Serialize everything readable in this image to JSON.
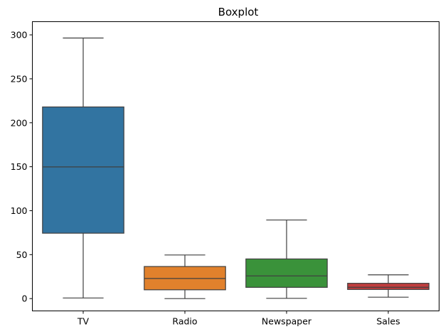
{
  "chart_data": {
    "type": "box",
    "title": "Boxplot",
    "xlabel": "",
    "ylabel": "",
    "categories": [
      "TV",
      "Radio",
      "Newspaper",
      "Sales"
    ],
    "ylim": [
      -14,
      315
    ],
    "yticks": [
      0,
      50,
      100,
      150,
      200,
      250,
      300
    ],
    "boxes": [
      {
        "label": "TV",
        "min": 0.7,
        "q1": 74.4,
        "median": 149.8,
        "q3": 218.0,
        "max": 296.4,
        "color": "#3274a1"
      },
      {
        "label": "Radio",
        "min": 0.0,
        "q1": 10.0,
        "median": 22.9,
        "q3": 36.5,
        "max": 49.6,
        "color": "#e1812c"
      },
      {
        "label": "Newspaper",
        "min": 0.3,
        "q1": 12.8,
        "median": 25.8,
        "q3": 45.1,
        "max": 89.4,
        "color": "#3a923a"
      },
      {
        "label": "Sales",
        "min": 1.6,
        "q1": 10.4,
        "median": 12.9,
        "q3": 17.4,
        "max": 27.0,
        "color": "#c03d3e"
      }
    ],
    "grid": false,
    "legend": "none"
  }
}
